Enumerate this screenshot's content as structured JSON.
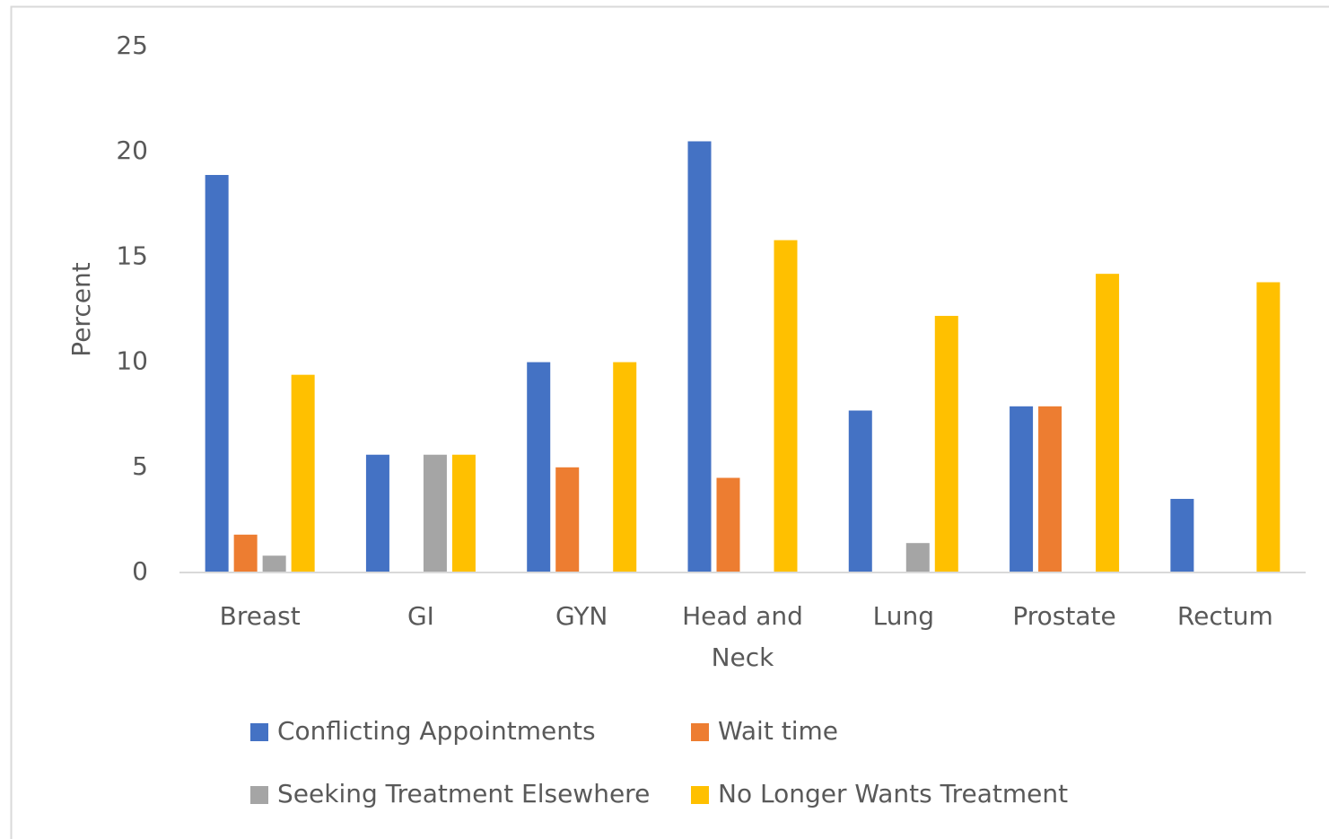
{
  "chart_data": {
    "type": "bar",
    "y_label": "Percent",
    "categories": [
      "Breast",
      "GI",
      "GYN",
      "Head and Neck",
      "Lung",
      "Prostate",
      "Rectum"
    ],
    "series": [
      {
        "name": "Conflicting Appointments",
        "color": "#4472c4",
        "values": [
          18.9,
          5.6,
          10,
          20.5,
          7.7,
          7.9,
          3.5
        ]
      },
      {
        "name": "Wait time",
        "color": "#ed7d31",
        "values": [
          1.8,
          0,
          5,
          4.5,
          0,
          7.9,
          0
        ]
      },
      {
        "name": "Seeking Treatment Elsewhere",
        "color": "#a5a5a5",
        "values": [
          0.8,
          5.6,
          0,
          0,
          1.4,
          0,
          0
        ]
      },
      {
        "name": "No Longer Wants Treatment",
        "color": "#ffc000",
        "values": [
          9.4,
          5.6,
          10,
          15.8,
          12.2,
          14.2,
          13.8
        ]
      }
    ],
    "ylim": [
      0,
      25
    ],
    "yticks": [
      0,
      5,
      10,
      15,
      20,
      25
    ],
    "grid": false,
    "legend": "bottom"
  }
}
